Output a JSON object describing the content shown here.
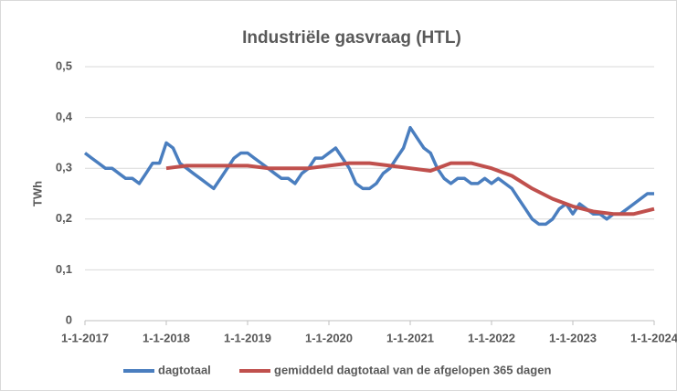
{
  "chart_data": {
    "type": "line",
    "title": "Industriële gasvraag (HTL)",
    "ylabel": "TWh",
    "xlim": [
      2017,
      2024
    ],
    "xticks": [
      {
        "value": 2017,
        "label": "1-1-2017"
      },
      {
        "value": 2018,
        "label": "1-1-2018"
      },
      {
        "value": 2019,
        "label": "1-1-2019"
      },
      {
        "value": 2020,
        "label": "1-1-2020"
      },
      {
        "value": 2021,
        "label": "1-1-2021"
      },
      {
        "value": 2022,
        "label": "1-1-2022"
      },
      {
        "value": 2023,
        "label": "1-1-2023"
      },
      {
        "value": 2024,
        "label": "1-1-2024"
      }
    ],
    "ylim": [
      0,
      0.5
    ],
    "yticks": [
      0,
      {
        "value": 0.1,
        "label": "0,1"
      },
      {
        "value": 0.2,
        "label": "0,2"
      },
      {
        "value": 0.3,
        "label": "0,3"
      },
      {
        "value": 0.4,
        "label": "0,4"
      },
      {
        "value": 0.5,
        "label": "0,5"
      }
    ],
    "grid": true,
    "legend": "bottom",
    "series": [
      {
        "name": "dagtotaal",
        "color": "#4a7ebf",
        "x": [
          2017,
          2017.083,
          2017.167,
          2017.25,
          2017.333,
          2017.417,
          2017.5,
          2017.583,
          2017.667,
          2017.75,
          2017.833,
          2017.917,
          2018,
          2018.083,
          2018.167,
          2018.25,
          2018.333,
          2018.417,
          2018.5,
          2018.583,
          2018.667,
          2018.75,
          2018.833,
          2018.917,
          2019,
          2019.083,
          2019.167,
          2019.25,
          2019.333,
          2019.417,
          2019.5,
          2019.583,
          2019.667,
          2019.75,
          2019.833,
          2019.917,
          2020,
          2020.083,
          2020.167,
          2020.25,
          2020.333,
          2020.417,
          2020.5,
          2020.583,
          2020.667,
          2020.75,
          2020.833,
          2020.917,
          2021,
          2021.083,
          2021.167,
          2021.25,
          2021.333,
          2021.417,
          2021.5,
          2021.583,
          2021.667,
          2021.75,
          2021.833,
          2021.917,
          2022,
          2022.083,
          2022.167,
          2022.25,
          2022.333,
          2022.417,
          2022.5,
          2022.583,
          2022.667,
          2022.75,
          2022.833,
          2022.917,
          2023,
          2023.083,
          2023.167,
          2023.25,
          2023.333,
          2023.417,
          2023.5,
          2023.583,
          2023.667,
          2023.75,
          2023.833,
          2023.917,
          2024
        ],
        "values": [
          0.33,
          0.32,
          0.31,
          0.3,
          0.3,
          0.29,
          0.28,
          0.28,
          0.27,
          0.29,
          0.31,
          0.31,
          0.35,
          0.34,
          0.31,
          0.3,
          0.29,
          0.28,
          0.27,
          0.26,
          0.28,
          0.3,
          0.32,
          0.33,
          0.33,
          0.32,
          0.31,
          0.3,
          0.29,
          0.28,
          0.28,
          0.27,
          0.29,
          0.3,
          0.32,
          0.32,
          0.33,
          0.34,
          0.32,
          0.3,
          0.27,
          0.26,
          0.26,
          0.27,
          0.29,
          0.3,
          0.32,
          0.34,
          0.38,
          0.36,
          0.34,
          0.33,
          0.3,
          0.28,
          0.27,
          0.28,
          0.28,
          0.27,
          0.27,
          0.28,
          0.27,
          0.28,
          0.27,
          0.26,
          0.24,
          0.22,
          0.2,
          0.19,
          0.19,
          0.2,
          0.22,
          0.23,
          0.21,
          0.23,
          0.22,
          0.21,
          0.21,
          0.2,
          0.21,
          0.21,
          0.22,
          0.23,
          0.24,
          0.25,
          0.25
        ]
      },
      {
        "name": "gemiddeld dagtotaal van de afgelopen 365 dagen",
        "color": "#c0504d",
        "x": [
          2018,
          2018.25,
          2018.5,
          2018.75,
          2019,
          2019.25,
          2019.5,
          2019.75,
          2020,
          2020.25,
          2020.5,
          2020.75,
          2021,
          2021.25,
          2021.5,
          2021.75,
          2022,
          2022.25,
          2022.5,
          2022.75,
          2023,
          2023.25,
          2023.5,
          2023.75,
          2024
        ],
        "values": [
          0.3,
          0.305,
          0.305,
          0.305,
          0.305,
          0.3,
          0.3,
          0.3,
          0.305,
          0.31,
          0.31,
          0.305,
          0.3,
          0.295,
          0.31,
          0.31,
          0.3,
          0.285,
          0.26,
          0.24,
          0.225,
          0.215,
          0.21,
          0.21,
          0.22
        ]
      }
    ]
  }
}
